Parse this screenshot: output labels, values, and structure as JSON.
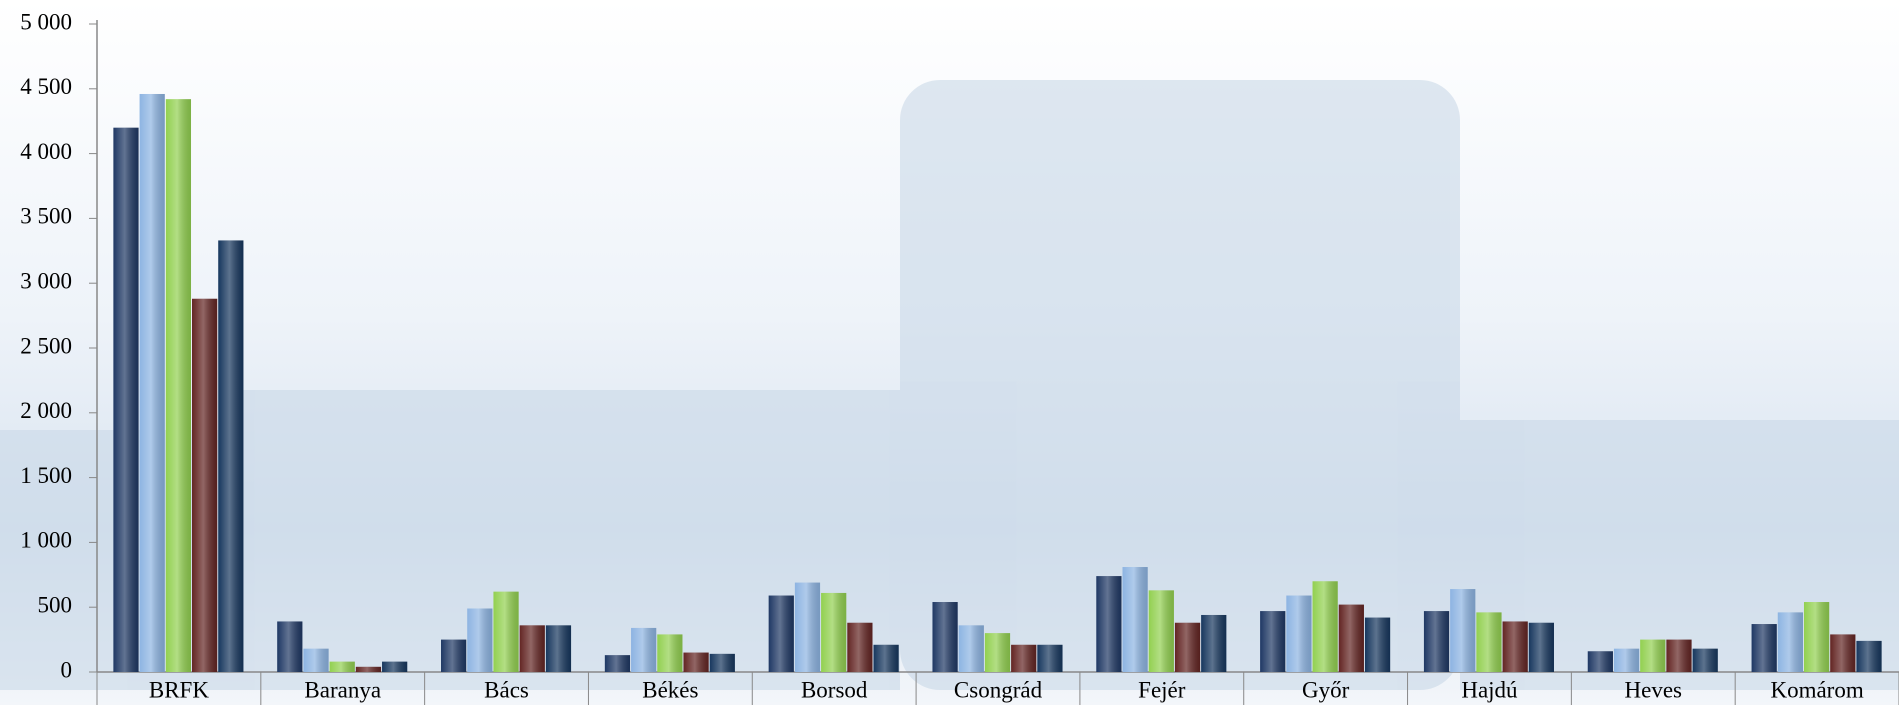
{
  "chart_data": {
    "type": "bar",
    "categories": [
      "BRFK",
      "Baranya",
      "Bács",
      "Békés",
      "Borsod",
      "Csongrád",
      "Fejér",
      "Győr",
      "Hajdú",
      "Heves",
      "Komárom"
    ],
    "series": [
      {
        "color": "#1f3864",
        "values": [
          4200,
          390,
          250,
          130,
          590,
          540,
          740,
          470,
          470,
          160,
          370
        ]
      },
      {
        "color": "#8db4e2",
        "values": [
          4460,
          180,
          490,
          340,
          690,
          360,
          810,
          590,
          640,
          180,
          460
        ]
      },
      {
        "color": "#92d050",
        "values": [
          4420,
          80,
          620,
          290,
          610,
          300,
          630,
          700,
          460,
          250,
          540
        ]
      },
      {
        "color": "#632523",
        "values": [
          2880,
          40,
          360,
          150,
          380,
          210,
          380,
          520,
          390,
          250,
          290
        ]
      },
      {
        "color": "#17375e",
        "values": [
          3330,
          80,
          360,
          140,
          210,
          210,
          440,
          420,
          380,
          180,
          240
        ]
      }
    ],
    "ylim": [
      0,
      5000
    ],
    "yticks": [
      {
        "value": 0,
        "label": "0"
      },
      {
        "value": 500,
        "label": "500"
      },
      {
        "value": 1000,
        "label": "1 000"
      },
      {
        "value": 1500,
        "label": "1 500"
      },
      {
        "value": 2000,
        "label": "2 000"
      },
      {
        "value": 2500,
        "label": "2 500"
      },
      {
        "value": 3000,
        "label": "3 000"
      },
      {
        "value": 3500,
        "label": "3 500"
      },
      {
        "value": 4000,
        "label": "4 000"
      },
      {
        "value": 4500,
        "label": "4 500"
      },
      {
        "value": 5000,
        "label": "5 000"
      }
    ],
    "grid": false
  }
}
